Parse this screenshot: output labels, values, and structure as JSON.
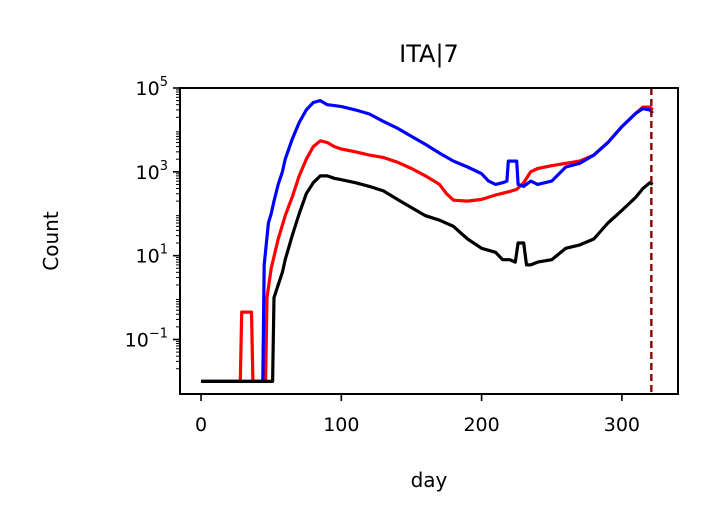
{
  "chart_data": {
    "type": "line",
    "title": "ITA|7",
    "xlabel": "day",
    "ylabel": "Count",
    "xlim": [
      -15,
      340
    ],
    "ylim": [
      0.005,
      100000
    ],
    "yscale": "log",
    "grid": false,
    "x_ticks": [
      0,
      100,
      200,
      300
    ],
    "y_ticks": [
      {
        "value": 100000,
        "base": "10",
        "exp": "5"
      },
      {
        "value": 1000,
        "base": "10",
        "exp": "3"
      },
      {
        "value": 10,
        "base": "10",
        "exp": "1"
      },
      {
        "value": 0.1,
        "base": "10",
        "exp": "−1"
      }
    ],
    "vline": {
      "x": 321,
      "color": "#8b0000",
      "style": "dashed"
    },
    "series": [
      {
        "color": "#ff0000",
        "points": [
          [
            0,
            0.01
          ],
          [
            28,
            0.01
          ],
          [
            29,
            0.45
          ],
          [
            36,
            0.45
          ],
          [
            37,
            0.01
          ],
          [
            46,
            0.01
          ],
          [
            47,
            1
          ],
          [
            50,
            5
          ],
          [
            55,
            25
          ],
          [
            60,
            90
          ],
          [
            65,
            250
          ],
          [
            70,
            800
          ],
          [
            75,
            2000
          ],
          [
            80,
            4000
          ],
          [
            85,
            5500
          ],
          [
            90,
            5000
          ],
          [
            95,
            4000
          ],
          [
            100,
            3500
          ],
          [
            110,
            3000
          ],
          [
            120,
            2500
          ],
          [
            130,
            2200
          ],
          [
            140,
            1700
          ],
          [
            150,
            1200
          ],
          [
            160,
            800
          ],
          [
            170,
            500
          ],
          [
            175,
            300
          ],
          [
            180,
            210
          ],
          [
            190,
            200
          ],
          [
            200,
            220
          ],
          [
            210,
            280
          ],
          [
            220,
            340
          ],
          [
            225,
            380
          ],
          [
            230,
            550
          ],
          [
            235,
            1000
          ],
          [
            240,
            1200
          ],
          [
            250,
            1400
          ],
          [
            260,
            1600
          ],
          [
            270,
            1800
          ],
          [
            280,
            2500
          ],
          [
            290,
            5000
          ],
          [
            300,
            12000
          ],
          [
            310,
            25000
          ],
          [
            315,
            35000
          ],
          [
            320,
            35000
          ],
          [
            322,
            30000
          ]
        ]
      },
      {
        "color": "#0000ff",
        "points": [
          [
            0,
            0.01
          ],
          [
            44,
            0.01
          ],
          [
            45,
            6
          ],
          [
            48,
            60
          ],
          [
            50,
            100
          ],
          [
            52,
            200
          ],
          [
            55,
            500
          ],
          [
            58,
            1000
          ],
          [
            60,
            2000
          ],
          [
            65,
            6000
          ],
          [
            70,
            15000
          ],
          [
            75,
            30000
          ],
          [
            80,
            45000
          ],
          [
            85,
            50000
          ],
          [
            90,
            40000
          ],
          [
            95,
            38000
          ],
          [
            100,
            36000
          ],
          [
            110,
            30000
          ],
          [
            120,
            24000
          ],
          [
            130,
            16000
          ],
          [
            140,
            11000
          ],
          [
            150,
            7000
          ],
          [
            160,
            4500
          ],
          [
            170,
            2800
          ],
          [
            180,
            1800
          ],
          [
            190,
            1300
          ],
          [
            200,
            900
          ],
          [
            205,
            600
          ],
          [
            210,
            500
          ],
          [
            215,
            550
          ],
          [
            218,
            600
          ],
          [
            219,
            1800
          ],
          [
            225,
            1800
          ],
          [
            226,
            500
          ],
          [
            230,
            450
          ],
          [
            235,
            600
          ],
          [
            240,
            500
          ],
          [
            250,
            600
          ],
          [
            260,
            1300
          ],
          [
            270,
            1600
          ],
          [
            280,
            2500
          ],
          [
            290,
            5000
          ],
          [
            300,
            12000
          ],
          [
            310,
            25000
          ],
          [
            315,
            32000
          ],
          [
            320,
            30000
          ],
          [
            322,
            25000
          ]
        ]
      },
      {
        "color": "#000000",
        "points": [
          [
            0,
            0.01
          ],
          [
            51,
            0.01
          ],
          [
            52,
            1
          ],
          [
            55,
            2
          ],
          [
            58,
            4
          ],
          [
            60,
            8
          ],
          [
            65,
            30
          ],
          [
            70,
            100
          ],
          [
            75,
            300
          ],
          [
            80,
            550
          ],
          [
            85,
            800
          ],
          [
            90,
            800
          ],
          [
            95,
            700
          ],
          [
            100,
            650
          ],
          [
            110,
            550
          ],
          [
            120,
            450
          ],
          [
            130,
            350
          ],
          [
            140,
            220
          ],
          [
            150,
            140
          ],
          [
            160,
            90
          ],
          [
            170,
            70
          ],
          [
            180,
            50
          ],
          [
            185,
            35
          ],
          [
            190,
            25
          ],
          [
            200,
            15
          ],
          [
            210,
            12
          ],
          [
            215,
            8
          ],
          [
            220,
            8
          ],
          [
            224,
            7
          ],
          [
            226,
            20
          ],
          [
            230,
            20
          ],
          [
            232,
            6
          ],
          [
            235,
            6
          ],
          [
            240,
            7
          ],
          [
            250,
            8
          ],
          [
            260,
            15
          ],
          [
            270,
            18
          ],
          [
            280,
            25
          ],
          [
            290,
            60
          ],
          [
            300,
            120
          ],
          [
            310,
            250
          ],
          [
            315,
            400
          ],
          [
            320,
            550
          ],
          [
            322,
            500
          ]
        ]
      }
    ]
  }
}
